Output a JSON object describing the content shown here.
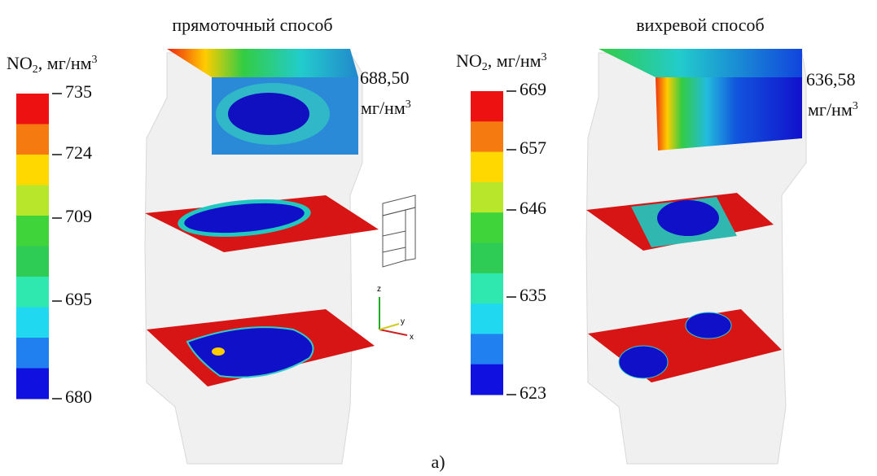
{
  "panels": [
    {
      "title": "прямоточный способ",
      "legend": {
        "label": "NO",
        "sub": "2",
        "unit": ", мг/нм",
        "sup": "3",
        "ticks": [
          "735",
          "724",
          "709",
          "695",
          "680"
        ],
        "colors": [
          "#ee1111",
          "#f57a10",
          "#ffd800",
          "#b8e62a",
          "#3fd43a",
          "#2fcc55",
          "#2fe8b0",
          "#20d8f0",
          "#2080f0",
          "#1010e0"
        ]
      },
      "value": "688,50",
      "value_unit": "мг/нм",
      "value_sup": "3"
    },
    {
      "title": "вихревой способ",
      "legend": {
        "label": "NO",
        "sub": "2",
        "unit": ", мг/нм",
        "sup": "3",
        "ticks": [
          "669",
          "657",
          "646",
          "635",
          "623"
        ],
        "colors": [
          "#ee1111",
          "#f57a10",
          "#ffd800",
          "#b8e62a",
          "#3fd43a",
          "#2fcc55",
          "#2fe8b0",
          "#20d8f0",
          "#2080f0",
          "#1010e0"
        ]
      },
      "value": "636,58",
      "value_unit": "мг/нм",
      "value_sup": "3"
    }
  ],
  "axes": {
    "z": "z",
    "y": "y",
    "x": "x"
  },
  "caption": "а)"
}
